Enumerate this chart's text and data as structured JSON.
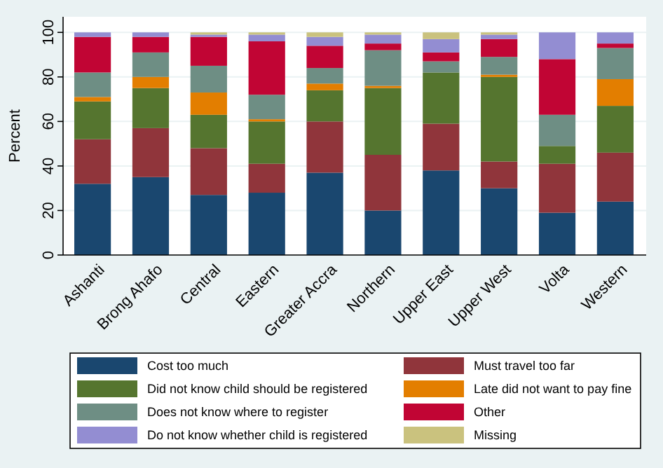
{
  "chart_data": {
    "type": "bar",
    "stacked": true,
    "ylabel": "Percent",
    "ylim": [
      0,
      107
    ],
    "yticks": [
      0,
      20,
      40,
      60,
      80,
      100
    ],
    "grid": "y",
    "legend": "bottom",
    "categories": [
      "Ashanti",
      "Brong Ahafo",
      "Central",
      "Eastern",
      "Greater Accra",
      "Northern",
      "Upper East",
      "Upper West",
      "Volta",
      "Western"
    ],
    "series": [
      {
        "name": "Cost too much",
        "color": "#1a476f",
        "values": [
          32,
          35,
          27,
          28,
          37,
          20,
          38,
          30,
          19,
          24
        ]
      },
      {
        "name": "Must travel too far",
        "color": "#90353b",
        "values": [
          20,
          22,
          21,
          13,
          23,
          25,
          21,
          12,
          22,
          22
        ]
      },
      {
        "name": "Did not know child should be registered",
        "color": "#55752f",
        "values": [
          17,
          18,
          15,
          19,
          14,
          30,
          23,
          38,
          8,
          21
        ]
      },
      {
        "name": "Late did not want to pay fine",
        "color": "#e37e00",
        "values": [
          2,
          5,
          10,
          1,
          3,
          1,
          0,
          1,
          0,
          12
        ]
      },
      {
        "name": "Does not know where to register",
        "color": "#6e8e84",
        "values": [
          11,
          11,
          12,
          11,
          7,
          16,
          5,
          8,
          14,
          14
        ]
      },
      {
        "name": "Other",
        "color": "#c10534",
        "values": [
          16,
          7,
          13,
          24,
          10,
          3,
          4,
          8,
          25,
          2
        ]
      },
      {
        "name": "Do not know whether child is registered",
        "color": "#938dd2",
        "values": [
          2,
          2,
          1,
          3,
          4,
          4,
          6,
          2,
          12,
          5
        ]
      },
      {
        "name": "Missing",
        "color": "#cac27e",
        "values": [
          0,
          0,
          1,
          1,
          2,
          1,
          3,
          1,
          0,
          0
        ]
      }
    ]
  }
}
